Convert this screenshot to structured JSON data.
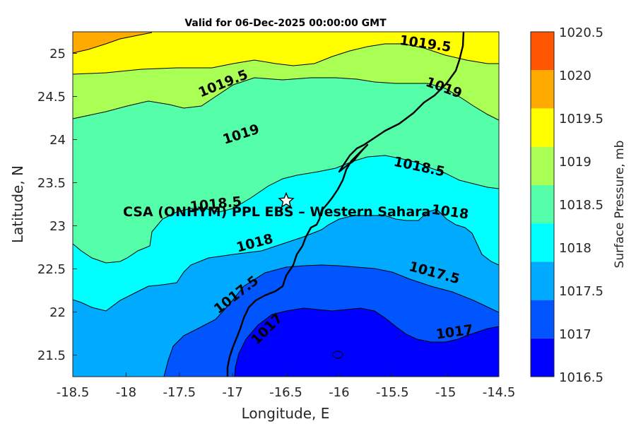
{
  "chart_data": {
    "type": "contour",
    "title": "Valid for 06-Dec-2025 00:00:00 GMT",
    "xlabel": "Longitude, E",
    "ylabel": "Latitude, N",
    "xlim": [
      -18.5,
      -14.5
    ],
    "ylim": [
      21.25,
      25.25
    ],
    "xticks": [
      "-18.5",
      "-18",
      "-17.5",
      "-17",
      "-16.5",
      "-16",
      "-15.5",
      "-15",
      "-14.5"
    ],
    "yticks": [
      "21.5",
      "22",
      "22.5",
      "23",
      "23.5",
      "24",
      "24.5",
      "25"
    ],
    "colorbar": {
      "label": "Surface Pressure, mb",
      "ticks": [
        "1016.5",
        "1017",
        "1017.5",
        "1018",
        "1018.5",
        "1019",
        "1019.5",
        "1020",
        "1020.5"
      ],
      "levels": [
        1016.5,
        1017,
        1017.5,
        1018,
        1018.5,
        1019,
        1019.5,
        1020,
        1020.5
      ],
      "colors": [
        "#0000ff",
        "#0055ff",
        "#00aaff",
        "#00ffff",
        "#55ffaa",
        "#aaff55",
        "#ffff00",
        "#ffaa00",
        "#ff5500"
      ]
    },
    "contour_labels": [
      {
        "text": "1019.5",
        "lon": -15.33,
        "lat": 25.02
      },
      {
        "text": "1019.5",
        "lon": -17.3,
        "lat": 24.66
      },
      {
        "text": "1019",
        "lon": -14.98,
        "lat": 24.63
      },
      {
        "text": "1019",
        "lon": -16.72,
        "lat": 24.05
      },
      {
        "text": "1018.5",
        "lon": -15.27,
        "lat": 23.65
      },
      {
        "text": "1018.5",
        "lon": -16.86,
        "lat": 23.27
      },
      {
        "text": "1018",
        "lon": -16.91,
        "lat": 22.87
      },
      {
        "text": "1018",
        "lon": -14.96,
        "lat": 23.14
      },
      {
        "text": "1017.5",
        "lon": -15.06,
        "lat": 22.43
      },
      {
        "text": "1017.5",
        "lon": -16.92,
        "lat": 22.05
      },
      {
        "text": "1017",
        "lon": -16.73,
        "lat": 21.75
      },
      {
        "text": "1017",
        "lon": -14.78,
        "lat": 21.77
      }
    ],
    "station": {
      "name": "CSA (ONHYM) PPL EBS – Western Sahara",
      "lon": -16.49,
      "lat": 23.29
    }
  }
}
